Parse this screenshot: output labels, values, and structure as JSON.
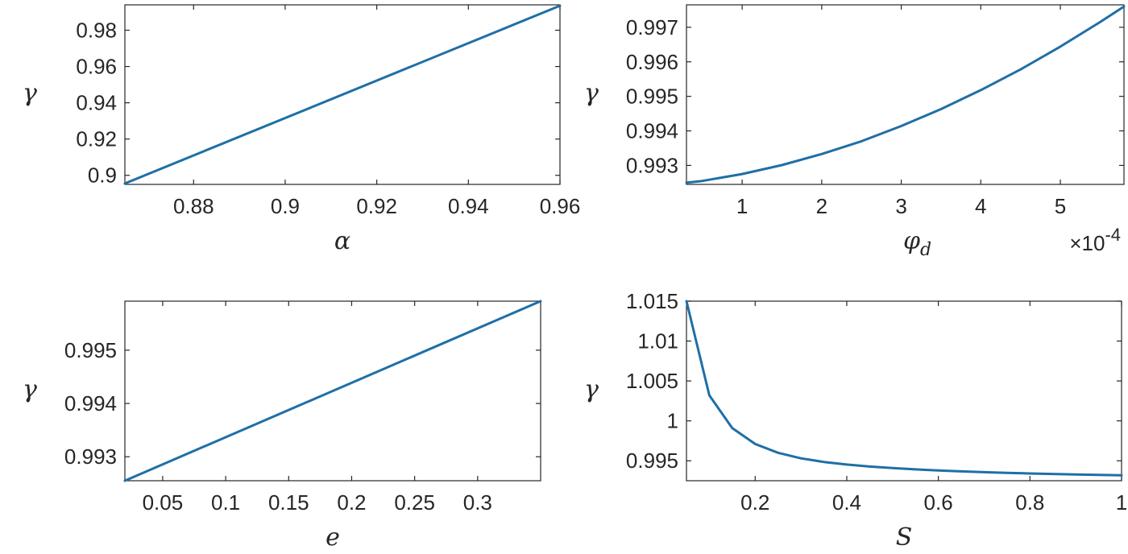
{
  "colors": {
    "line": "#1f6fa6",
    "axis": "#262626"
  },
  "chart_data": [
    {
      "type": "line",
      "xlabel": "α",
      "ylabel": "γ",
      "xlim": [
        0.865,
        0.96
      ],
      "ylim": [
        0.895,
        0.994
      ],
      "xticks": [
        0.88,
        0.9,
        0.92,
        0.94,
        0.96
      ],
      "xtick_labels": [
        "0.88",
        "0.9",
        "0.92",
        "0.94",
        "0.96"
      ],
      "yticks": [
        0.9,
        0.92,
        0.94,
        0.96,
        0.98
      ],
      "ytick_labels": [
        "0.9",
        "0.92",
        "0.94",
        "0.96",
        "0.98"
      ],
      "series": [
        {
          "name": "γ",
          "x": [
            0.865,
            0.96
          ],
          "y": [
            0.8955,
            0.9935
          ]
        }
      ]
    },
    {
      "type": "line",
      "xlabel": "φ",
      "xlabel_sub": "d",
      "ylabel": "γ",
      "x_exponent_base": "×10",
      "x_exponent_power": "-4",
      "xlim": [
        0.3,
        5.8
      ],
      "ylim": [
        0.99245,
        0.99765
      ],
      "xticks": [
        1,
        2,
        3,
        4,
        5
      ],
      "xtick_labels": [
        "1",
        "2",
        "3",
        "4",
        "5"
      ],
      "yticks": [
        0.993,
        0.994,
        0.995,
        0.996,
        0.997
      ],
      "ytick_labels": [
        "0.993",
        "0.994",
        "0.995",
        "0.996",
        "0.997"
      ],
      "series": [
        {
          "name": "γ",
          "x": [
            0.3,
            0.5,
            1,
            1.5,
            2,
            2.5,
            3,
            3.5,
            4,
            4.5,
            5,
            5.5,
            5.8
          ],
          "y": [
            0.9925,
            0.99255,
            0.99275,
            0.99301,
            0.99333,
            0.9937,
            0.99414,
            0.99463,
            0.99518,
            0.99578,
            0.99644,
            0.99715,
            0.9976
          ]
        }
      ]
    },
    {
      "type": "line",
      "xlabel": "e",
      "ylabel": "γ",
      "xlim": [
        0.02,
        0.35
      ],
      "ylim": [
        0.99255,
        0.99592
      ],
      "xticks": [
        0.05,
        0.1,
        0.15,
        0.2,
        0.25,
        0.3
      ],
      "xtick_labels": [
        "0.05",
        "0.1",
        "0.15",
        "0.2",
        "0.25",
        "0.3"
      ],
      "yticks": [
        0.993,
        0.994,
        0.995
      ],
      "ytick_labels": [
        "0.993",
        "0.994",
        "0.995"
      ],
      "series": [
        {
          "name": "γ",
          "x": [
            0.02,
            0.35
          ],
          "y": [
            0.99255,
            0.99592
          ]
        }
      ]
    },
    {
      "type": "line",
      "xlabel": "S",
      "ylabel": "γ",
      "xlim": [
        0.05,
        1
      ],
      "ylim": [
        0.9925,
        1.015
      ],
      "xticks": [
        0.2,
        0.4,
        0.6,
        0.8,
        1
      ],
      "xtick_labels": [
        "0.2",
        "0.4",
        "0.6",
        "0.8",
        "1"
      ],
      "yticks": [
        0.995,
        1,
        1.005,
        1.01,
        1.015
      ],
      "ytick_labels": [
        "0.995",
        "1",
        "1.005",
        "1.01",
        "1.015"
      ],
      "series": [
        {
          "name": "γ",
          "x": [
            0.05,
            0.1,
            0.15,
            0.2,
            0.25,
            0.3,
            0.35,
            0.4,
            0.45,
            0.5,
            0.55,
            0.6,
            0.65,
            0.7,
            0.75,
            0.8,
            0.85,
            0.9,
            0.95,
            1.0
          ],
          "y": [
            1.015,
            1.0032,
            0.9991,
            0.9971,
            0.996,
            0.9953,
            0.99485,
            0.99453,
            0.99428,
            0.99408,
            0.99392,
            0.99378,
            0.99367,
            0.99357,
            0.99349,
            0.99341,
            0.99335,
            0.99329,
            0.99323,
            0.99318
          ]
        }
      ]
    }
  ]
}
